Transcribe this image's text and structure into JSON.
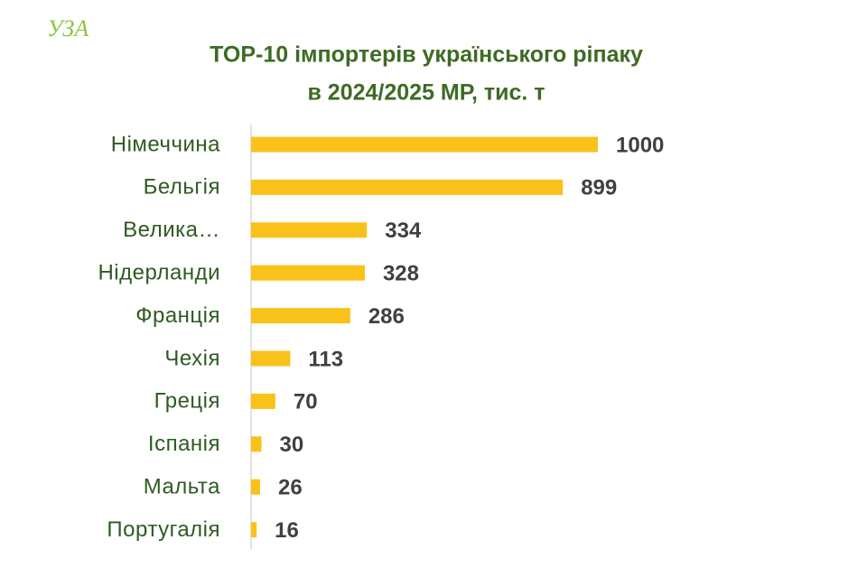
{
  "logo": "УЗА",
  "chart_data": {
    "type": "barh",
    "title": "TOP-10 імпортерів українського ріпаку",
    "subtitle": "в 2024/2025 МР, тис. т",
    "categories": [
      "Німеччина",
      "Бельгія",
      "Велика…",
      "Нідерланди",
      "Франція",
      "Чехія",
      "Греція",
      "Іспанія",
      "Мальта",
      "Португалія"
    ],
    "values": [
      1000,
      899,
      334,
      328,
      286,
      113,
      70,
      30,
      26,
      16
    ],
    "color": "#f9c21b",
    "xlim": [
      0,
      1000
    ]
  }
}
